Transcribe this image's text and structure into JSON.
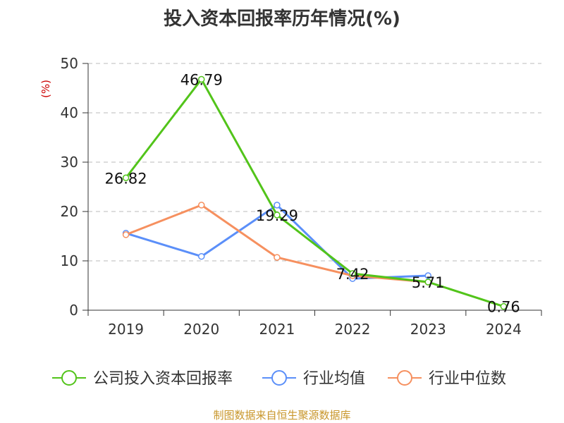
{
  "title": "投入资本回报率历年情况(%)",
  "source": "制图数据来自恒生聚源数据库",
  "chart_data": {
    "type": "line",
    "title": "投入资本回报率历年情况(%)",
    "xlabel": "",
    "ylabel": "(%)",
    "ylim": [
      0,
      50
    ],
    "yticks": [
      0,
      10,
      20,
      30,
      40,
      50
    ],
    "grid": true,
    "legend_position": "bottom",
    "categories": [
      "2019",
      "2020",
      "2021",
      "2022",
      "2023",
      "2024"
    ],
    "series": [
      {
        "name": "公司投入资本回报率",
        "color": "#52c41a",
        "values": [
          26.82,
          46.79,
          19.29,
          7.42,
          5.71,
          0.76
        ],
        "labels": [
          "26.82",
          "46.79",
          "19.29",
          "7.42",
          "5.71",
          "0.76"
        ]
      },
      {
        "name": "行业均值",
        "color": "#5b8ff9",
        "values": [
          15.6,
          10.9,
          21.3,
          6.4,
          7.0,
          null
        ]
      },
      {
        "name": "行业中位数",
        "color": "#f6905f",
        "values": [
          15.3,
          21.3,
          10.7,
          7.0,
          5.7,
          null
        ]
      }
    ]
  }
}
